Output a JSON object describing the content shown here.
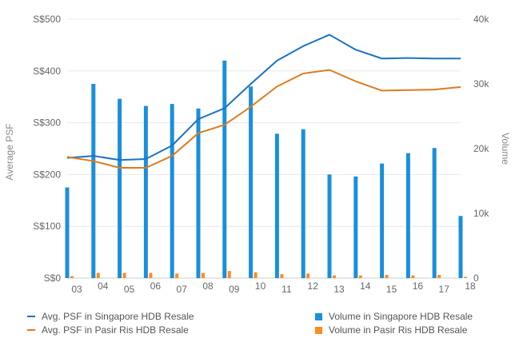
{
  "chart_data": {
    "type": "bar",
    "categories": [
      "03",
      "04",
      "05",
      "06",
      "07",
      "08",
      "09",
      "10",
      "11",
      "12",
      "13",
      "14",
      "15",
      "16",
      "17",
      "18"
    ],
    "y_left": {
      "label": "Average PSF",
      "ticks": [
        "S$0",
        "S$100",
        "S$200",
        "S$300",
        "S$400",
        "S$500"
      ],
      "ylim": [
        0,
        500
      ]
    },
    "y_right": {
      "label": "Volume",
      "ticks": [
        "0",
        "10k",
        "20k",
        "30k",
        "40k"
      ],
      "ylim": [
        0,
        40000
      ]
    },
    "grid": "horizontal",
    "legend_position": "bottom",
    "series": [
      {
        "name": "Avg. PSF in Singapore HDB Resale",
        "type": "line",
        "axis": "left",
        "color": "#1a73c2",
        "values": [
          232,
          236,
          228,
          230,
          256,
          307,
          328,
          375,
          420,
          448,
          470,
          441,
          424,
          425,
          424,
          424
        ]
      },
      {
        "name": "Avg. PSF in Pasir Ris HDB Resale",
        "type": "line",
        "axis": "left",
        "color": "#e07b1a",
        "values": [
          234,
          226,
          213,
          213,
          236,
          280,
          296,
          331,
          370,
          395,
          402,
          380,
          362,
          363,
          364,
          369
        ]
      },
      {
        "name": "Volume in Singapore HDB Resale",
        "type": "bar",
        "axis": "right",
        "color": "#1a8fdc",
        "values": [
          14000,
          30000,
          27700,
          26600,
          26900,
          26200,
          33600,
          29600,
          22300,
          23000,
          16000,
          15700,
          17700,
          19300,
          20100,
          9600
        ]
      },
      {
        "name": "Volume in Pasir Ris HDB Resale",
        "type": "bar",
        "axis": "right",
        "color": "#ff8c1a",
        "values": [
          300,
          800,
          800,
          800,
          700,
          800,
          1100,
          900,
          600,
          700,
          400,
          400,
          500,
          400,
          500,
          200
        ]
      }
    ]
  },
  "colors": {
    "grid": "#e8e8e8",
    "axis_text": "#666666"
  }
}
